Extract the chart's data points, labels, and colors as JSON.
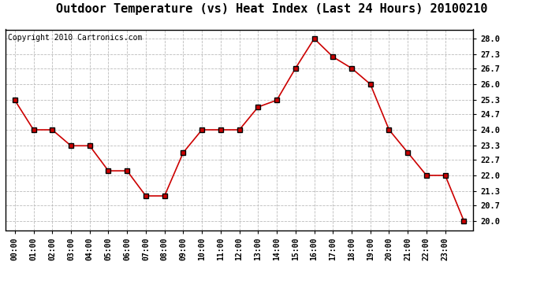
{
  "title": "Outdoor Temperature (vs) Heat Index (Last 24 Hours) 20100210",
  "copyright": "Copyright 2010 Cartronics.com",
  "x_labels": [
    "00:00",
    "01:00",
    "02:00",
    "03:00",
    "04:00",
    "05:00",
    "06:00",
    "07:00",
    "08:00",
    "09:00",
    "10:00",
    "11:00",
    "12:00",
    "13:00",
    "14:00",
    "15:00",
    "16:00",
    "17:00",
    "18:00",
    "19:00",
    "20:00",
    "21:00",
    "22:00",
    "23:00"
  ],
  "y_values": [
    25.3,
    24.0,
    24.0,
    23.3,
    23.3,
    22.2,
    22.2,
    21.1,
    21.1,
    23.0,
    24.0,
    24.0,
    24.0,
    25.0,
    25.3,
    26.7,
    28.0,
    27.2,
    26.7,
    26.0,
    24.0,
    23.0,
    22.0,
    22.0,
    20.0
  ],
  "line_color": "#cc0000",
  "marker": "s",
  "marker_size": 4,
  "grid_color": "#bbbbbb",
  "bg_color": "#ffffff",
  "yticks": [
    20.0,
    20.7,
    21.3,
    22.0,
    22.7,
    23.3,
    24.0,
    24.7,
    25.3,
    26.0,
    26.7,
    27.3,
    28.0
  ],
  "ylim_min": 19.6,
  "ylim_max": 28.4,
  "title_fontsize": 11,
  "copyright_fontsize": 7
}
